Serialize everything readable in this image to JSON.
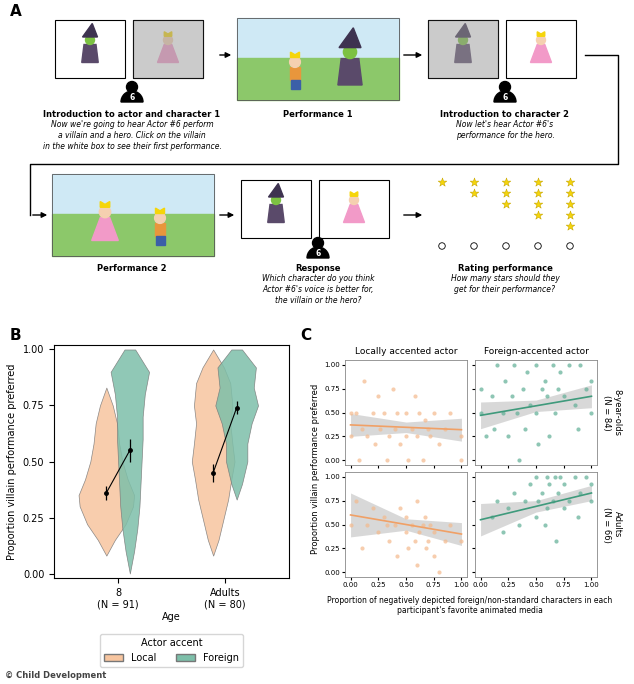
{
  "panel_labels": [
    "A",
    "B",
    "C"
  ],
  "credit": "© Child Development",
  "panel_a": {
    "actor_number": 6,
    "star_options": [
      1,
      2,
      3,
      4,
      5
    ],
    "steps": [
      {
        "title": "Introduction to actor and character 1",
        "text": "Now we're going to hear Actor #6 perform\na villain and a hero. Click on the villain\nin the white box to see their first performance."
      },
      {
        "title": "Performance 1"
      },
      {
        "title": "Introduction to character 2",
        "text": "Now let's hear Actor #6's\nperformance for the hero."
      },
      {
        "title": "Performance 2"
      },
      {
        "title": "Response",
        "text": "Which character do you think\nActor #6's voice is better for,\nthe villain or the hero?"
      },
      {
        "title": "Rating performance",
        "text": "How many stars should they\nget for their performance?"
      }
    ]
  },
  "panel_c": {
    "column_titles": [
      "Locally accented actor",
      "Foreign-accented actor"
    ],
    "row_labels": [
      "8-year-olds\n(N = 84)",
      "Adults\n(N = 66)"
    ],
    "xlabel": "Proportion of negatively depicted foreign/non-standard characters in each participant's favorite animated media",
    "ylabel": "Proportion villain performance preferred"
  },
  "chart_data": [
    {
      "type": "violin",
      "xlabel": "Age",
      "ylabel": "Proportion villain performance preferred",
      "categories": [
        "8\n(N = 91)",
        "Adults\n(N = 80)"
      ],
      "legend": "below",
      "legend_title": "Actor accent",
      "ylim": [
        -0.02,
        1.02
      ],
      "yticks": [
        {
          "value": 0,
          "label": "0.00"
        },
        {
          "value": 0.25,
          "label": "0.25"
        },
        {
          "value": 0.5,
          "label": "0.50"
        },
        {
          "value": 0.75,
          "label": "0.75"
        },
        {
          "value": 1,
          "label": "1.00"
        }
      ],
      "series": [
        {
          "name": "Local",
          "color": "#f7c59f",
          "values": [
            0.36,
            0.45
          ],
          "errors": [
            0.03,
            0.04
          ],
          "profiles": [
            {
              "y": [
                0.08,
                0.15,
                0.22,
                0.3,
                0.35,
                0.42,
                0.5,
                0.58,
                0.67,
                0.75,
                0.83
              ],
              "width": [
                0,
                0.08,
                0.18,
                0.25,
                0.26,
                0.2,
                0.15,
                0.12,
                0.1,
                0.06,
                0
              ]
            },
            {
              "y": [
                0.08,
                0.15,
                0.25,
                0.33,
                0.42,
                0.5,
                0.58,
                0.67,
                0.75,
                0.85,
                0.92,
                1.0
              ],
              "width": [
                0,
                0.05,
                0.1,
                0.14,
                0.17,
                0.2,
                0.18,
                0.16,
                0.18,
                0.16,
                0.1,
                0
              ]
            }
          ]
        },
        {
          "name": "Foreign",
          "color": "#7dbfa9",
          "values": [
            0.55,
            0.74
          ],
          "errors": [
            0.05,
            0.03
          ],
          "profiles": [
            {
              "y": [
                0.0,
                0.1,
                0.2,
                0.3,
                0.4,
                0.5,
                0.6,
                0.7,
                0.8,
                0.9,
                1.0
              ],
              "width": [
                0,
                0.04,
                0.07,
                0.09,
                0.1,
                0.11,
                0.12,
                0.12,
                0.14,
                0.18,
                0.05
              ]
            },
            {
              "y": [
                0.33,
                0.4,
                0.5,
                0.58,
                0.67,
                0.75,
                0.83,
                0.92,
                1.0
              ],
              "width": [
                0,
                0.05,
                0.1,
                0.1,
                0.14,
                0.2,
                0.16,
                0.18,
                0.05
              ]
            }
          ]
        }
      ]
    },
    {
      "type": "scatter",
      "color": "#f4b98c",
      "tick_labels": "y",
      "xlim": [
        -0.05,
        1.05
      ],
      "ylim": [
        -0.05,
        1.05
      ],
      "xticks": [
        {
          "value": 0,
          "label": "0.00"
        },
        {
          "value": 0.25,
          "label": "0.25"
        },
        {
          "value": 0.5,
          "label": "0.50"
        },
        {
          "value": 0.75,
          "label": "0.75"
        },
        {
          "value": 1,
          "label": "1.00"
        }
      ],
      "yticks": [
        {
          "value": 0,
          "label": "0.00"
        },
        {
          "value": 0.25,
          "label": "0.25"
        },
        {
          "value": 0.5,
          "label": "0.50"
        },
        {
          "value": 0.75,
          "label": "0.75"
        },
        {
          "value": 1,
          "label": "1.00"
        }
      ],
      "x": [
        0.0,
        0.0,
        0.05,
        0.08,
        0.1,
        0.12,
        0.15,
        0.2,
        0.22,
        0.25,
        0.27,
        0.3,
        0.33,
        0.35,
        0.38,
        0.4,
        0.42,
        0.45,
        0.5,
        0.5,
        0.52,
        0.55,
        0.58,
        0.6,
        0.62,
        0.65,
        0.67,
        0.7,
        0.72,
        0.75,
        0.8,
        0.85,
        0.9,
        1.0,
        1.0
      ],
      "values": [
        0.5,
        0.25,
        0.5,
        0.0,
        0.33,
        0.83,
        0.25,
        0.5,
        0.17,
        0.67,
        0.33,
        0.5,
        0.0,
        0.25,
        0.75,
        0.33,
        0.5,
        0.17,
        0.5,
        0.25,
        0.0,
        0.33,
        0.67,
        0.25,
        0.5,
        0.0,
        0.42,
        0.33,
        0.25,
        0.5,
        0.17,
        0.33,
        0.5,
        0.25,
        0.0
      ],
      "regression": {
        "type": "line",
        "color": "#f0a066",
        "x": [
          0,
          0.5,
          1
        ],
        "values": [
          0.37,
          0.345,
          0.32
        ],
        "ci_low": [
          0.25,
          0.29,
          0.2
        ],
        "ci_high": [
          0.49,
          0.4,
          0.44
        ]
      }
    },
    {
      "type": "scatter",
      "color": "#5fae95",
      "tick_labels": false,
      "xlim": [
        -0.05,
        1.05
      ],
      "ylim": [
        -0.05,
        1.05
      ],
      "xticks": [
        {
          "value": 0,
          "label": "0.00"
        },
        {
          "value": 0.25,
          "label": "0.25"
        },
        {
          "value": 0.5,
          "label": "0.50"
        },
        {
          "value": 0.75,
          "label": "0.75"
        },
        {
          "value": 1,
          "label": "1.00"
        }
      ],
      "yticks": [
        {
          "value": 0,
          "label": "0.00"
        },
        {
          "value": 0.25,
          "label": "0.25"
        },
        {
          "value": 0.5,
          "label": "0.50"
        },
        {
          "value": 0.75,
          "label": "0.75"
        },
        {
          "value": 1,
          "label": "1.00"
        }
      ],
      "x": [
        0.0,
        0.0,
        0.05,
        0.1,
        0.12,
        0.15,
        0.2,
        0.22,
        0.25,
        0.28,
        0.3,
        0.33,
        0.35,
        0.38,
        0.4,
        0.42,
        0.45,
        0.5,
        0.5,
        0.52,
        0.55,
        0.58,
        0.6,
        0.62,
        0.65,
        0.67,
        0.7,
        0.72,
        0.75,
        0.8,
        0.85,
        0.88,
        0.9,
        0.95,
        1.0,
        1.0
      ],
      "values": [
        0.5,
        0.75,
        0.25,
        0.67,
        0.33,
        1.0,
        0.5,
        0.83,
        0.25,
        0.67,
        1.0,
        0.5,
        0.0,
        0.75,
        0.33,
        0.92,
        0.58,
        1.0,
        0.5,
        0.17,
        0.75,
        0.83,
        0.67,
        0.25,
        1.0,
        0.5,
        0.75,
        0.92,
        0.67,
        1.0,
        0.58,
        0.33,
        1.0,
        0.75,
        0.83,
        0.5
      ],
      "regression": {
        "type": "line",
        "color": "#3f9a7c",
        "x": [
          0,
          0.5,
          1
        ],
        "values": [
          0.47,
          0.57,
          0.67
        ],
        "ci_low": [
          0.33,
          0.51,
          0.55
        ],
        "ci_high": [
          0.61,
          0.63,
          0.79
        ]
      }
    },
    {
      "type": "scatter",
      "color": "#f4b98c",
      "xlim": [
        -0.05,
        1.05
      ],
      "ylim": [
        -0.05,
        1.05
      ],
      "xticks": [
        {
          "value": 0,
          "label": "0.00"
        },
        {
          "value": 0.25,
          "label": "0.25"
        },
        {
          "value": 0.5,
          "label": "0.50"
        },
        {
          "value": 0.75,
          "label": "0.75"
        },
        {
          "value": 1,
          "label": "1.00"
        }
      ],
      "yticks": [
        {
          "value": 0,
          "label": "0.00"
        },
        {
          "value": 0.25,
          "label": "0.25"
        },
        {
          "value": 0.5,
          "label": "0.50"
        },
        {
          "value": 0.75,
          "label": "0.75"
        },
        {
          "value": 1,
          "label": "1.00"
        }
      ],
      "x": [
        0.0,
        0.05,
        0.1,
        0.15,
        0.2,
        0.25,
        0.3,
        0.33,
        0.35,
        0.4,
        0.42,
        0.45,
        0.5,
        0.5,
        0.52,
        0.55,
        0.58,
        0.6,
        0.6,
        0.62,
        0.65,
        0.67,
        0.68,
        0.7,
        0.72,
        0.75,
        0.75,
        0.8,
        0.85,
        0.9,
        1.0
      ],
      "values": [
        0.5,
        0.75,
        0.25,
        0.5,
        0.67,
        0.42,
        0.58,
        0.5,
        0.33,
        0.5,
        0.17,
        0.67,
        0.42,
        0.58,
        0.25,
        0.5,
        0.33,
        0.75,
        0.08,
        0.42,
        0.5,
        0.58,
        0.25,
        0.33,
        0.5,
        0.17,
        0.42,
        0.0,
        0.33,
        0.5,
        0.33
      ],
      "regression": {
        "type": "line",
        "color": "#f0a066",
        "x": [
          0,
          0.5,
          1
        ],
        "values": [
          0.6,
          0.5,
          0.4
        ],
        "ci_low": [
          0.37,
          0.44,
          0.28
        ],
        "ci_high": [
          0.83,
          0.56,
          0.52
        ]
      }
    },
    {
      "type": "scatter",
      "color": "#5fae95",
      "tick_labels": "x",
      "xlim": [
        -0.05,
        1.05
      ],
      "ylim": [
        -0.05,
        1.05
      ],
      "xticks": [
        {
          "value": 0,
          "label": "0.00"
        },
        {
          "value": 0.25,
          "label": "0.25"
        },
        {
          "value": 0.5,
          "label": "0.50"
        },
        {
          "value": 0.75,
          "label": "0.75"
        },
        {
          "value": 1,
          "label": "1.00"
        }
      ],
      "yticks": [
        {
          "value": 0,
          "label": "0.00"
        },
        {
          "value": 0.25,
          "label": "0.25"
        },
        {
          "value": 0.5,
          "label": "0.50"
        },
        {
          "value": 0.75,
          "label": "0.75"
        },
        {
          "value": 1,
          "label": "1.00"
        }
      ],
      "x": [
        0.1,
        0.15,
        0.2,
        0.25,
        0.3,
        0.35,
        0.4,
        0.45,
        0.5,
        0.5,
        0.52,
        0.55,
        0.58,
        0.6,
        0.6,
        0.62,
        0.65,
        0.67,
        0.68,
        0.7,
        0.72,
        0.75,
        0.75,
        0.8,
        0.85,
        0.88,
        0.9,
        0.95,
        1.0,
        1.0
      ],
      "values": [
        0.58,
        0.75,
        0.42,
        0.67,
        0.83,
        0.5,
        0.75,
        0.92,
        0.58,
        1.0,
        0.75,
        0.83,
        0.5,
        1.0,
        0.67,
        0.92,
        0.75,
        1.0,
        0.33,
        0.83,
        1.0,
        0.67,
        0.92,
        0.75,
        1.0,
        0.58,
        0.83,
        1.0,
        0.75,
        0.92
      ],
      "regression": {
        "type": "line",
        "color": "#3f9a7c",
        "x": [
          0,
          0.5,
          1
        ],
        "values": [
          0.55,
          0.69,
          0.83
        ],
        "ci_low": [
          0.38,
          0.63,
          0.75
        ],
        "ci_high": [
          0.72,
          0.75,
          0.91
        ]
      }
    }
  ]
}
